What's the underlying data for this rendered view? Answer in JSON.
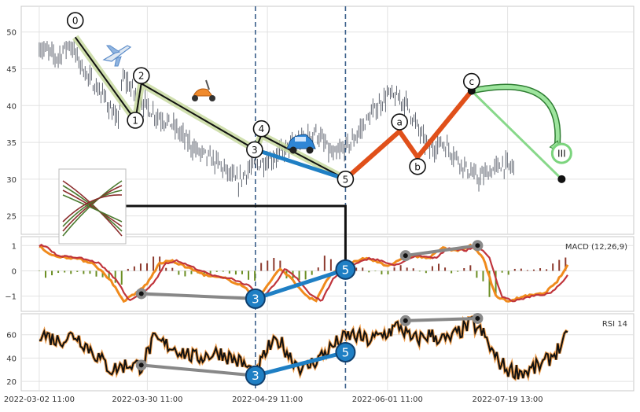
{
  "chart_data": [
    {
      "panel": "price",
      "type": "candlestick-with-annotations",
      "ylim": [
        22.5,
        53.5
      ],
      "y_ticks": [
        25,
        30,
        35,
        40,
        45,
        50
      ],
      "grid": true,
      "x_ticks": [
        "2022-03-02 11:00",
        "2022-03-30 11:00",
        "2022-04-29 11:00",
        "2022-06-01 11:00",
        "2022-07-19 13:00"
      ],
      "x_tick_index": [
        0,
        18,
        38,
        58,
        78
      ],
      "x_range": [
        -3,
        99
      ],
      "price_path": [
        [
          0,
          48
        ],
        [
          3,
          46.5
        ],
        [
          5,
          48.5
        ],
        [
          8,
          44
        ],
        [
          11,
          41
        ],
        [
          13,
          37.5
        ],
        [
          14,
          44
        ],
        [
          16,
          41.5
        ],
        [
          19,
          39
        ],
        [
          22,
          37.5
        ],
        [
          26,
          34
        ],
        [
          30,
          32
        ],
        [
          33,
          29.5
        ],
        [
          35,
          31.5
        ],
        [
          39,
          33
        ],
        [
          43,
          35
        ],
        [
          46,
          36.5
        ],
        [
          49,
          33
        ],
        [
          52,
          35
        ],
        [
          55,
          38.5
        ],
        [
          58,
          41.5
        ],
        [
          61,
          40.5
        ],
        [
          63,
          37
        ],
        [
          65,
          34
        ],
        [
          67,
          35
        ],
        [
          69,
          33.5
        ],
        [
          71,
          31.5
        ],
        [
          73,
          30
        ],
        [
          75,
          31
        ],
        [
          77,
          32
        ],
        [
          79,
          31.5
        ]
      ],
      "waves": [
        {
          "label": "0",
          "x": 6,
          "y": 50.5
        },
        {
          "label": "1",
          "x": 16,
          "y": 38
        },
        {
          "label": "2",
          "x": 17,
          "y": 43
        },
        {
          "label": "3",
          "x": 36,
          "y": 34
        },
        {
          "label": "4",
          "x": 37,
          "y": 36
        },
        {
          "label": "5",
          "x": 51,
          "y": 30
        },
        {
          "label": "a",
          "x": 60,
          "y": 36.5
        },
        {
          "label": "b",
          "x": 63,
          "y": 33
        },
        {
          "label": "c",
          "x": 72,
          "y": 42
        },
        {
          "label": "III",
          "x": 87,
          "y": 33.5
        }
      ],
      "impulse_path": [
        [
          6,
          49.3
        ],
        [
          16,
          38
        ],
        [
          17,
          43
        ],
        [
          36,
          34
        ],
        [
          37,
          36
        ],
        [
          51,
          30
        ]
      ],
      "blue_leg": [
        [
          36,
          34
        ],
        [
          51,
          30
        ]
      ],
      "abc_path": [
        [
          51,
          30
        ],
        [
          60,
          36.5
        ],
        [
          63,
          33
        ],
        [
          72,
          42
        ]
      ],
      "projection_path": [
        [
          72,
          42
        ],
        [
          87,
          30
        ]
      ],
      "vlines": [
        36,
        51
      ],
      "icons": [
        "airplane",
        "scooter",
        "car"
      ]
    },
    {
      "panel": "macd",
      "type": "line",
      "label": "MACD (12,26,9)",
      "ylim": [
        -1.6,
        1.35
      ],
      "y_ticks": [
        -1,
        0,
        1
      ],
      "markers": [
        {
          "label": "",
          "x": 17,
          "y": -0.9
        },
        {
          "label": "3",
          "x": 36,
          "y": -1.1
        },
        {
          "label": "5",
          "x": 51,
          "y": 0.05
        },
        {
          "label": "",
          "x": 61,
          "y": 0.6
        },
        {
          "label": "",
          "x": 73,
          "y": 1.0
        }
      ]
    },
    {
      "panel": "rsi",
      "type": "line",
      "label": "RSI 14",
      "ylim": [
        12,
        78
      ],
      "y_ticks": [
        20,
        40,
        60
      ],
      "markers": [
        {
          "label": "",
          "x": 17,
          "y": 34
        },
        {
          "label": "3",
          "x": 36,
          "y": 25
        },
        {
          "label": "5",
          "x": 51,
          "y": 45
        },
        {
          "label": "",
          "x": 61,
          "y": 72
        },
        {
          "label": "",
          "x": 73,
          "y": 74
        }
      ]
    }
  ]
}
